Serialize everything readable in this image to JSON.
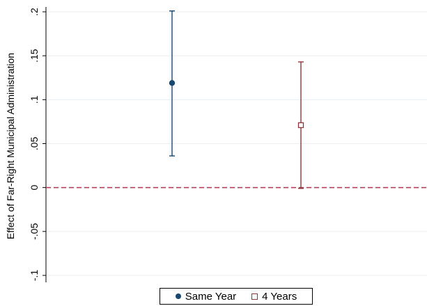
{
  "chart_data": {
    "type": "scatter",
    "ylabel": "Effect of Far-Right Municipal Administration",
    "ylim": [
      -0.1,
      0.2
    ],
    "yticks": [
      {
        "value": -0.1,
        "label": "-.1"
      },
      {
        "value": -0.05,
        "label": "-.05"
      },
      {
        "value": 0,
        "label": "0"
      },
      {
        "value": 0.05,
        "label": ".05"
      },
      {
        "value": 0.1,
        "label": ".1"
      },
      {
        "value": 0.15,
        "label": ".15"
      },
      {
        "value": 0.2,
        "label": ".2"
      }
    ],
    "reference_line": {
      "y": 0,
      "style": "dashed",
      "color": "#b5435a"
    },
    "grid": true,
    "legend_position": "bottom",
    "series": [
      {
        "name": "Same Year",
        "estimate": 0.119,
        "ci_low": 0.036,
        "ci_high": 0.201,
        "color": "#1a476f",
        "marker": "filled-circle"
      },
      {
        "name": "4 Years",
        "estimate": 0.071,
        "ci_low": -0.001,
        "ci_high": 0.143,
        "color": "#90353b",
        "marker": "hollow-square"
      }
    ]
  }
}
